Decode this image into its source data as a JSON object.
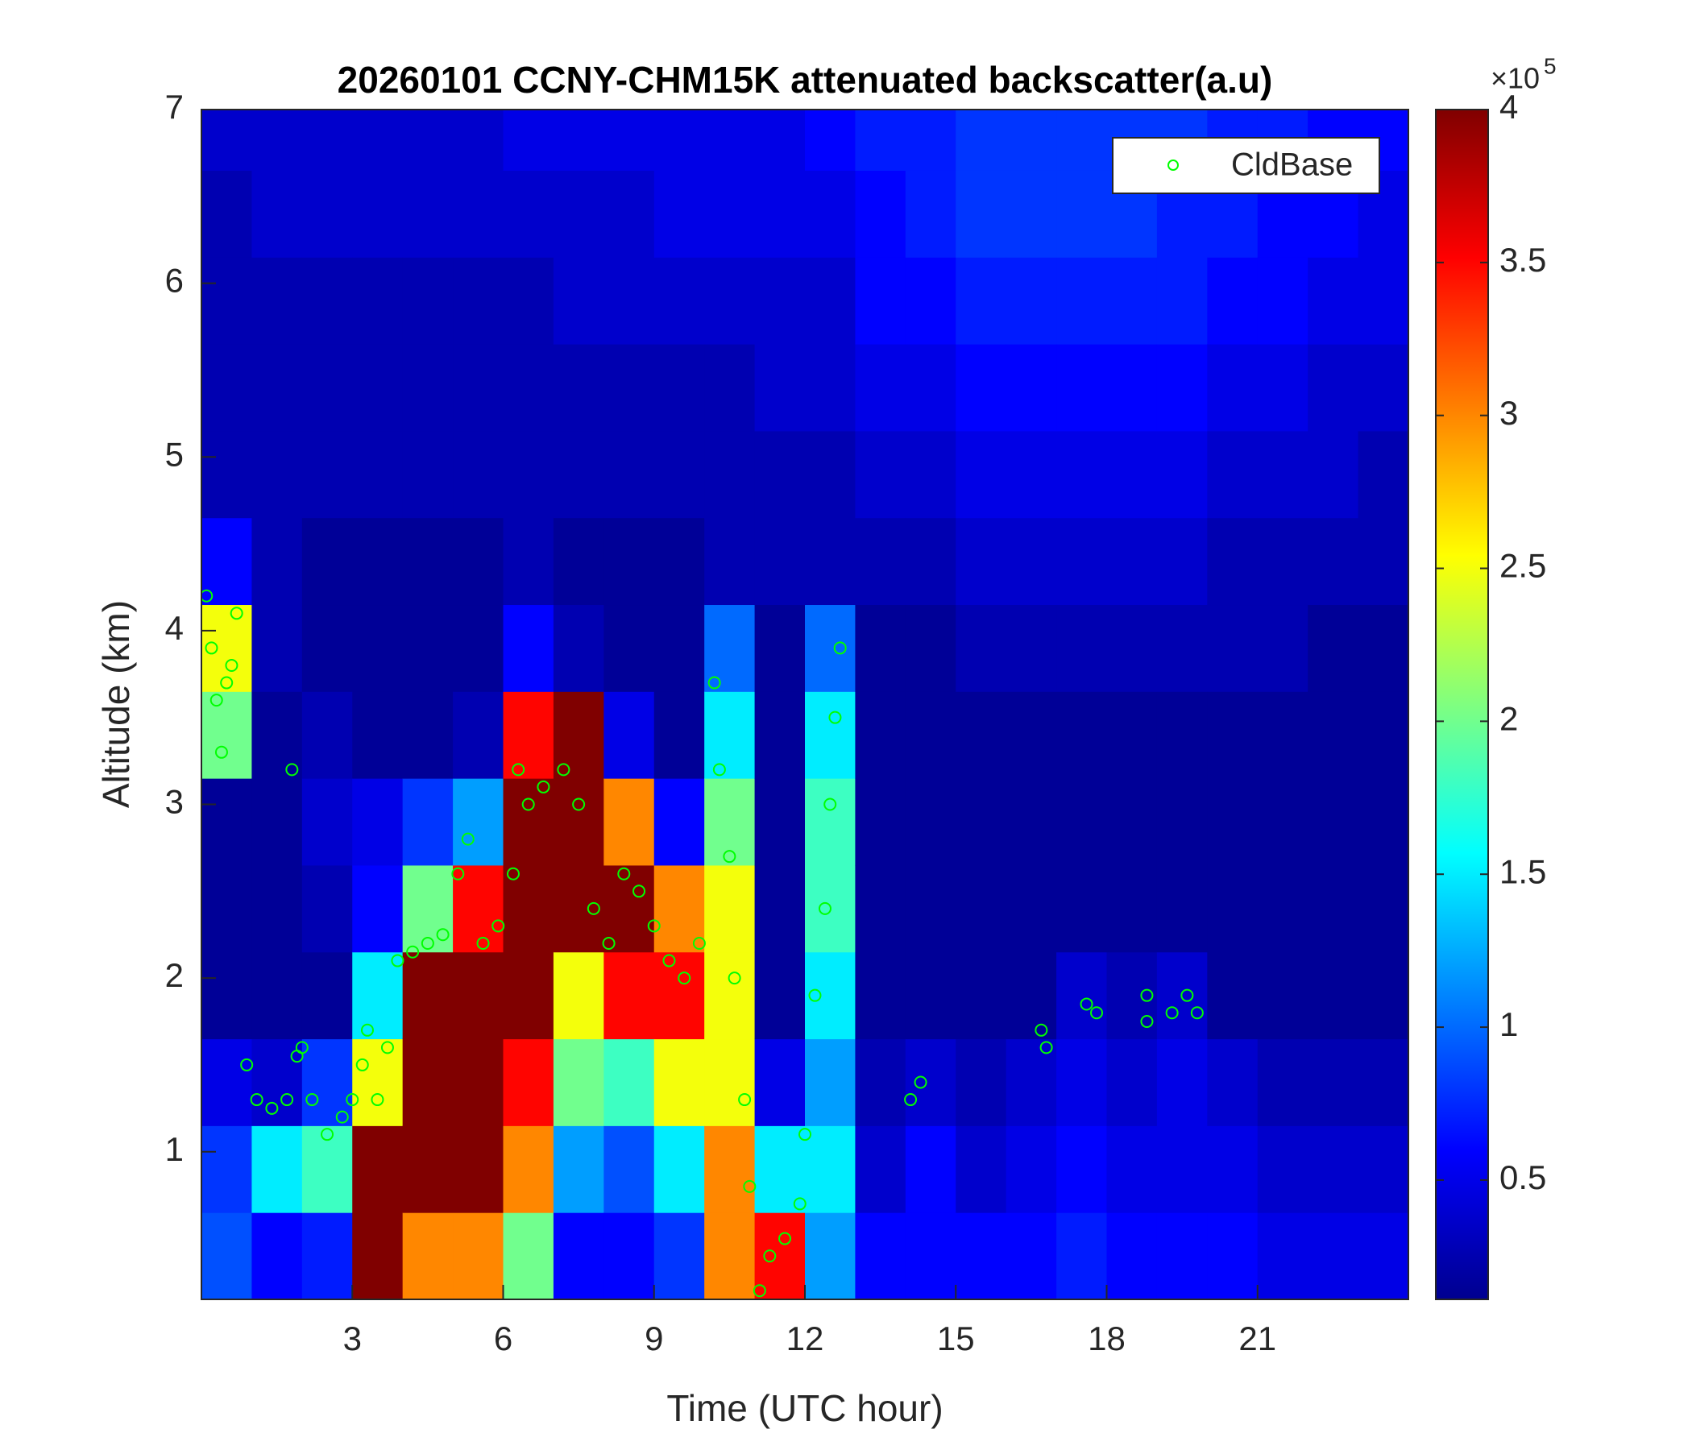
{
  "chart_data": {
    "type": "heatmap",
    "title": "20260101 CCNY-CHM15K attenuated backscatter(a.u)",
    "xlabel": "Time (UTC hour)",
    "ylabel": "Altitude (km)",
    "x": [
      0.5,
      1.5,
      2.5,
      3.5,
      4.5,
      5.5,
      6.5,
      7.5,
      8.5,
      9.5,
      10.5,
      11.5,
      12.5,
      13.5,
      14.5,
      15.5,
      16.5,
      17.5,
      18.5,
      19.5,
      20.5,
      21.5,
      22.5,
      23.5
    ],
    "y": [
      0.4,
      0.9,
      1.4,
      1.9,
      2.4,
      2.9,
      3.4,
      3.9,
      4.4,
      4.9,
      5.4,
      5.9,
      6.4,
      6.9
    ],
    "z": [
      [
        0.9,
        0.8,
        0.5,
        0.2,
        0.2,
        0.2,
        2.0,
        2.5,
        0.6,
        0.3,
        0.3,
        0.3,
        0.3,
        0.4
      ],
      [
        0.6,
        1.5,
        0.4,
        0.2,
        0.2,
        0.2,
        0.2,
        0.3,
        0.3,
        0.3,
        0.3,
        0.3,
        0.4,
        0.4
      ],
      [
        0.7,
        1.8,
        0.8,
        0.2,
        0.3,
        0.4,
        0.3,
        0.2,
        0.2,
        0.3,
        0.3,
        0.3,
        0.4,
        0.4
      ],
      [
        4,
        4,
        2.5,
        1.5,
        0.6,
        0.5,
        0.2,
        0.2,
        0.2,
        0.3,
        0.3,
        0.3,
        0.4,
        0.4
      ],
      [
        3,
        4,
        4,
        4,
        2.0,
        0.8,
        0.2,
        0.2,
        0.2,
        0.3,
        0.3,
        0.3,
        0.4,
        0.4
      ],
      [
        3,
        4,
        4,
        4,
        3.5,
        1.2,
        0.3,
        0.2,
        0.2,
        0.3,
        0.3,
        0.3,
        0.4,
        0.4
      ],
      [
        2,
        3,
        3.5,
        4,
        4,
        4,
        3.5,
        0.6,
        0.3,
        0.3,
        0.3,
        0.3,
        0.4,
        0.5
      ],
      [
        0.6,
        1.2,
        2.0,
        2.5,
        4,
        4,
        4,
        0.3,
        0.2,
        0.3,
        0.3,
        0.4,
        0.4,
        0.5
      ],
      [
        0.6,
        0.9,
        1.8,
        3.5,
        4,
        3,
        0.5,
        0.2,
        0.2,
        0.3,
        0.3,
        0.4,
        0.4,
        0.5
      ],
      [
        0.8,
        1.5,
        2.5,
        3.5,
        3.0,
        0.6,
        0.2,
        0.2,
        0.2,
        0.3,
        0.3,
        0.4,
        0.5,
        0.5
      ],
      [
        3,
        3,
        2.5,
        2.5,
        2.5,
        2.0,
        1.5,
        1.0,
        0.3,
        0.3,
        0.3,
        0.4,
        0.5,
        0.5
      ],
      [
        3.5,
        1.5,
        0.5,
        0.2,
        0.2,
        0.2,
        0.2,
        0.2,
        0.3,
        0.3,
        0.4,
        0.4,
        0.5,
        0.5
      ],
      [
        1.2,
        1.5,
        1.2,
        1.5,
        1.8,
        1.8,
        1.5,
        1.0,
        0.3,
        0.3,
        0.4,
        0.4,
        0.5,
        0.6
      ],
      [
        0.6,
        0.4,
        0.3,
        0.2,
        0.2,
        0.2,
        0.2,
        0.2,
        0.3,
        0.4,
        0.5,
        0.6,
        0.6,
        0.7
      ],
      [
        0.6,
        0.6,
        0.4,
        0.2,
        0.2,
        0.2,
        0.2,
        0.2,
        0.3,
        0.4,
        0.5,
        0.6,
        0.7,
        0.7
      ],
      [
        0.6,
        0.4,
        0.3,
        0.2,
        0.2,
        0.2,
        0.2,
        0.3,
        0.4,
        0.5,
        0.6,
        0.7,
        0.8,
        0.8
      ],
      [
        0.6,
        0.5,
        0.4,
        0.2,
        0.2,
        0.2,
        0.2,
        0.3,
        0.4,
        0.5,
        0.6,
        0.7,
        0.8,
        0.8
      ],
      [
        0.7,
        0.6,
        0.5,
        0.4,
        0.2,
        0.2,
        0.2,
        0.3,
        0.4,
        0.5,
        0.6,
        0.7,
        0.8,
        0.8
      ],
      [
        0.6,
        0.5,
        0.4,
        0.3,
        0.2,
        0.2,
        0.2,
        0.3,
        0.4,
        0.5,
        0.6,
        0.7,
        0.8,
        0.8
      ],
      [
        0.6,
        0.5,
        0.5,
        0.4,
        0.2,
        0.2,
        0.2,
        0.3,
        0.4,
        0.5,
        0.6,
        0.7,
        0.7,
        0.8
      ],
      [
        0.6,
        0.5,
        0.4,
        0.2,
        0.2,
        0.2,
        0.2,
        0.3,
        0.3,
        0.4,
        0.5,
        0.6,
        0.7,
        0.7
      ],
      [
        0.5,
        0.4,
        0.3,
        0.2,
        0.2,
        0.2,
        0.2,
        0.3,
        0.3,
        0.4,
        0.5,
        0.6,
        0.6,
        0.7
      ],
      [
        0.5,
        0.4,
        0.3,
        0.2,
        0.2,
        0.2,
        0.2,
        0.2,
        0.3,
        0.4,
        0.4,
        0.5,
        0.6,
        0.6
      ],
      [
        0.5,
        0.4,
        0.3,
        0.2,
        0.2,
        0.2,
        0.2,
        0.2,
        0.3,
        0.3,
        0.4,
        0.5,
        0.5,
        0.6
      ]
    ],
    "colormap": "jet",
    "clim": [
      0.11,
      4
    ],
    "cticks": [
      0.5,
      1,
      1.5,
      2,
      2.5,
      3,
      3.5,
      4
    ],
    "colorbar_multiplier": "×10",
    "colorbar_exponent": "5",
    "xlim": [
      0,
      24
    ],
    "ylim": [
      0.15,
      7
    ],
    "xticks": [
      3,
      6,
      9,
      12,
      15,
      18,
      21
    ],
    "yticks": [
      1,
      2,
      3,
      4,
      5,
      6,
      7
    ],
    "legend": "upper right",
    "overlay": {
      "type": "scatter",
      "name": "CldBase",
      "color": "#00ff00",
      "x": [
        0.1,
        0.2,
        0.3,
        0.4,
        0.5,
        0.6,
        0.7,
        0.9,
        1.1,
        1.4,
        1.7,
        1.8,
        1.9,
        2.0,
        2.2,
        2.5,
        2.8,
        3.0,
        3.2,
        3.3,
        3.5,
        3.7,
        3.9,
        4.2,
        4.5,
        4.8,
        5.1,
        5.3,
        5.6,
        5.9,
        6.2,
        6.3,
        6.5,
        6.8,
        7.2,
        7.5,
        7.8,
        8.1,
        8.4,
        8.7,
        9.0,
        9.3,
        9.6,
        9.9,
        10.2,
        10.3,
        10.5,
        10.6,
        10.8,
        10.9,
        11.1,
        11.3,
        11.6,
        11.9,
        12.0,
        12.2,
        12.4,
        12.5,
        12.6,
        12.7,
        14.1,
        14.3,
        16.7,
        16.8,
        17.6,
        17.8,
        18.8,
        18.8,
        19.3,
        19.6,
        19.8
      ],
      "y": [
        4.2,
        3.9,
        3.6,
        3.3,
        3.7,
        3.8,
        4.1,
        1.5,
        1.3,
        1.25,
        1.3,
        3.2,
        1.55,
        1.6,
        1.3,
        1.1,
        1.2,
        1.3,
        1.5,
        1.7,
        1.3,
        1.6,
        2.1,
        2.15,
        2.2,
        2.25,
        2.6,
        2.8,
        2.2,
        2.3,
        2.6,
        3.2,
        3.0,
        3.1,
        3.2,
        3.0,
        2.4,
        2.2,
        2.6,
        2.5,
        2.3,
        2.1,
        2.0,
        2.2,
        3.7,
        3.2,
        2.7,
        2.0,
        1.3,
        0.8,
        0.2,
        0.4,
        0.5,
        0.7,
        1.1,
        1.9,
        2.4,
        3.0,
        3.5,
        3.9,
        1.3,
        1.4,
        1.7,
        1.6,
        1.85,
        1.8,
        1.9,
        1.75,
        1.8,
        1.9,
        1.8
      ]
    }
  }
}
